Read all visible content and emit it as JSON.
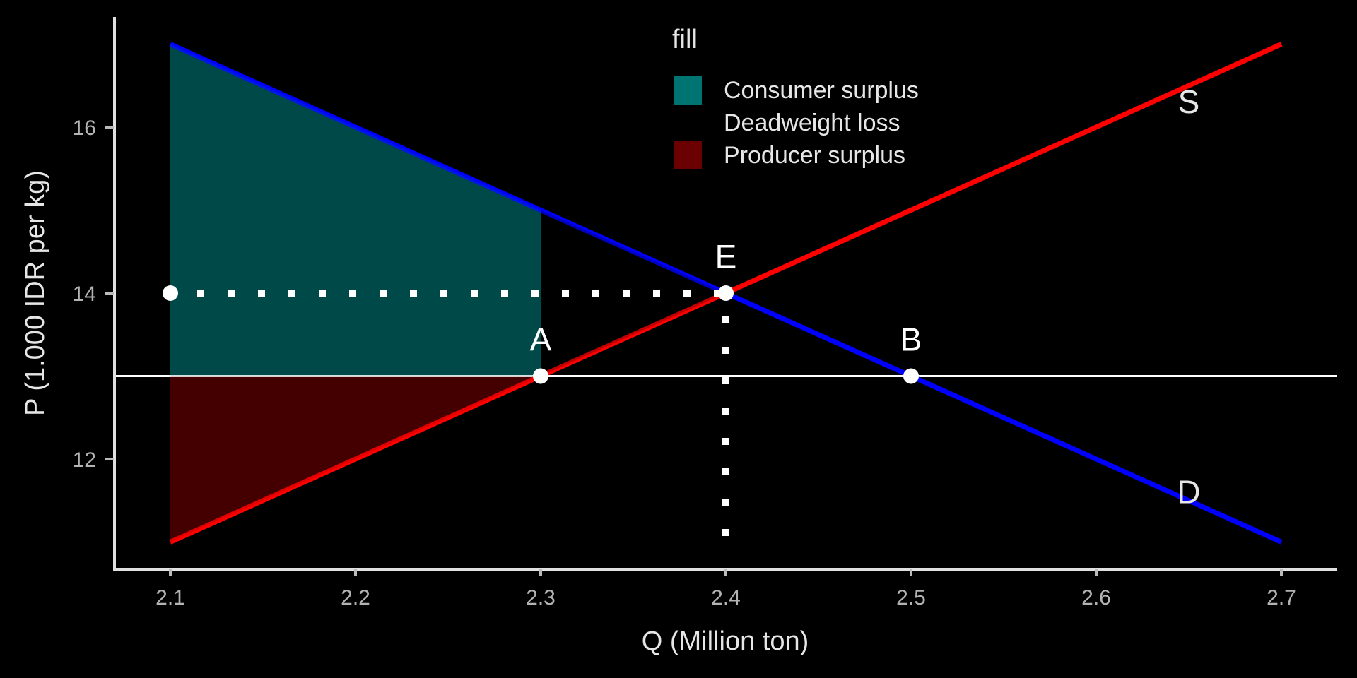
{
  "chart_data": {
    "type": "line",
    "title": "",
    "xlabel": "Q (Million ton)",
    "ylabel": "P (1.000 IDR per kg)",
    "xlim": [
      2.07,
      2.73
    ],
    "ylim": [
      10.6,
      17.6
    ],
    "xticks": [
      2.1,
      2.2,
      2.3,
      2.4,
      2.5,
      2.6,
      2.7
    ],
    "xtick_labels": [
      "2.1",
      "2.2",
      "2.3",
      "2.4",
      "2.5",
      "2.6",
      "2.7"
    ],
    "yticks": [
      12,
      14,
      16
    ],
    "ytick_labels": [
      "12",
      "14",
      "16"
    ],
    "grid": false,
    "series": [
      {
        "name": "D",
        "color": "#0000ff",
        "x": [
          2.1,
          2.7
        ],
        "y": [
          17,
          11
        ]
      },
      {
        "name": "S",
        "color": "#ff0000",
        "x": [
          2.1,
          2.7
        ],
        "y": [
          11,
          17
        ]
      }
    ],
    "price_line": {
      "y": 13,
      "color": "#ffffff"
    },
    "equilibrium_guides": {
      "x": 2.4,
      "y": 14,
      "color": "#ffffff"
    },
    "areas": [
      {
        "name": "Consumer surplus",
        "color": "#007373",
        "polygon": [
          [
            2.1,
            17
          ],
          [
            2.3,
            15
          ],
          [
            2.3,
            13
          ],
          [
            2.1,
            13
          ]
        ]
      },
      {
        "name": "Deadweight loss",
        "color": "#000000",
        "polygon": [
          [
            2.3,
            15
          ],
          [
            2.4,
            14
          ],
          [
            2.3,
            13
          ]
        ]
      },
      {
        "name": "Producer surplus",
        "color": "#6b0000",
        "polygon": [
          [
            2.1,
            13
          ],
          [
            2.3,
            13
          ],
          [
            2.1,
            11
          ]
        ]
      }
    ],
    "points": [
      {
        "label": "",
        "x": 2.1,
        "y": 14
      },
      {
        "label": "E",
        "x": 2.4,
        "y": 14
      },
      {
        "label": "A",
        "x": 2.3,
        "y": 13
      },
      {
        "label": "B",
        "x": 2.5,
        "y": 13
      }
    ],
    "curve_labels": [
      {
        "label": "S",
        "x": 2.65,
        "y": 16.4
      },
      {
        "label": "D",
        "x": 2.65,
        "y": 11.7
      }
    ],
    "legend": {
      "title": "fill",
      "placement": "top-center",
      "entries": [
        {
          "label": "Consumer surplus",
          "color": "#007373"
        },
        {
          "label": "Deadweight loss",
          "color": "#000000"
        },
        {
          "label": "Producer surplus",
          "color": "#6b0000"
        }
      ]
    }
  }
}
